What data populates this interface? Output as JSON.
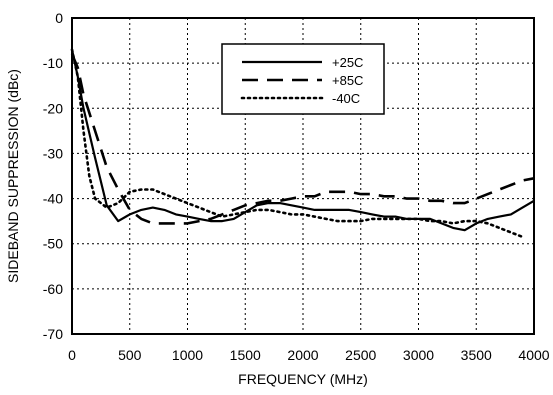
{
  "chart_data": {
    "type": "line",
    "title": "",
    "xlabel": "FREQUENCY (MHz)",
    "ylabel": "SIDEBAND SUPPRESSION (dBc)",
    "xlim": [
      0,
      4000
    ],
    "ylim": [
      -70,
      0
    ],
    "x_ticks": [
      0,
      500,
      1000,
      1500,
      2000,
      2500,
      3000,
      3500,
      4000
    ],
    "y_ticks": [
      0,
      -10,
      -20,
      -30,
      -40,
      -50,
      -60,
      -70
    ],
    "grid": true,
    "grid_style": "dotted",
    "legend_position": "top-center",
    "series": [
      {
        "name": "+25C",
        "line_style": "solid",
        "color": "#000000",
        "points": [
          [
            0,
            -7
          ],
          [
            50,
            -13
          ],
          [
            100,
            -20
          ],
          [
            200,
            -31
          ],
          [
            300,
            -41.5
          ],
          [
            400,
            -45
          ],
          [
            500,
            -43.5
          ],
          [
            600,
            -42.5
          ],
          [
            700,
            -42
          ],
          [
            800,
            -42.5
          ],
          [
            900,
            -43.5
          ],
          [
            1000,
            -44
          ],
          [
            1100,
            -44.5
          ],
          [
            1200,
            -45
          ],
          [
            1300,
            -45
          ],
          [
            1400,
            -44.5
          ],
          [
            1500,
            -43
          ],
          [
            1600,
            -41.5
          ],
          [
            1700,
            -41
          ],
          [
            1800,
            -41
          ],
          [
            1900,
            -41.5
          ],
          [
            2000,
            -42
          ],
          [
            2100,
            -42.5
          ],
          [
            2200,
            -42.5
          ],
          [
            2300,
            -42.5
          ],
          [
            2400,
            -42.5
          ],
          [
            2500,
            -43
          ],
          [
            2600,
            -43.5
          ],
          [
            2700,
            -44
          ],
          [
            2800,
            -44
          ],
          [
            2900,
            -44.5
          ],
          [
            3000,
            -44.5
          ],
          [
            3100,
            -44.5
          ],
          [
            3200,
            -45.5
          ],
          [
            3300,
            -46.5
          ],
          [
            3400,
            -47
          ],
          [
            3500,
            -45.5
          ],
          [
            3600,
            -44.5
          ],
          [
            3700,
            -44
          ],
          [
            3800,
            -43.5
          ],
          [
            3900,
            -42
          ],
          [
            4000,
            -40.5
          ]
        ]
      },
      {
        "name": "+85C",
        "line_style": "dashed",
        "color": "#000000",
        "points": [
          [
            0,
            -8
          ],
          [
            50,
            -11
          ],
          [
            100,
            -17
          ],
          [
            200,
            -25
          ],
          [
            300,
            -33
          ],
          [
            400,
            -38
          ],
          [
            500,
            -42.5
          ],
          [
            600,
            -44.5
          ],
          [
            700,
            -45.5
          ],
          [
            800,
            -45.5
          ],
          [
            900,
            -45.5
          ],
          [
            1000,
            -45.5
          ],
          [
            1100,
            -45
          ],
          [
            1200,
            -44.5
          ],
          [
            1300,
            -43.5
          ],
          [
            1400,
            -42.5
          ],
          [
            1500,
            -41.5
          ],
          [
            1600,
            -41
          ],
          [
            1700,
            -40.5
          ],
          [
            1800,
            -40.5
          ],
          [
            1900,
            -40
          ],
          [
            2000,
            -39.5
          ],
          [
            2100,
            -39.5
          ],
          [
            2200,
            -38.5
          ],
          [
            2300,
            -38.5
          ],
          [
            2400,
            -38.5
          ],
          [
            2500,
            -39
          ],
          [
            2600,
            -39
          ],
          [
            2700,
            -39.5
          ],
          [
            2800,
            -39.5
          ],
          [
            2900,
            -40
          ],
          [
            3000,
            -40
          ],
          [
            3100,
            -40.5
          ],
          [
            3200,
            -40.5
          ],
          [
            3300,
            -41
          ],
          [
            3400,
            -41
          ],
          [
            3500,
            -40
          ],
          [
            3600,
            -39
          ],
          [
            3700,
            -38
          ],
          [
            3800,
            -37
          ],
          [
            3900,
            -36
          ],
          [
            4000,
            -35.5
          ]
        ]
      },
      {
        "name": "-40C",
        "line_style": "dotted",
        "color": "#000000",
        "points": [
          [
            0,
            -7
          ],
          [
            50,
            -13
          ],
          [
            100,
            -25
          ],
          [
            150,
            -35
          ],
          [
            200,
            -40
          ],
          [
            300,
            -42
          ],
          [
            400,
            -41
          ],
          [
            500,
            -38.5
          ],
          [
            600,
            -38
          ],
          [
            700,
            -38
          ],
          [
            800,
            -39
          ],
          [
            900,
            -40
          ],
          [
            1000,
            -41
          ],
          [
            1100,
            -42
          ],
          [
            1200,
            -43
          ],
          [
            1300,
            -44
          ],
          [
            1400,
            -43.5
          ],
          [
            1500,
            -43
          ],
          [
            1600,
            -42.5
          ],
          [
            1700,
            -42.5
          ],
          [
            1800,
            -43
          ],
          [
            1900,
            -43.5
          ],
          [
            2000,
            -43.5
          ],
          [
            2100,
            -44
          ],
          [
            2200,
            -44.5
          ],
          [
            2300,
            -45
          ],
          [
            2400,
            -45
          ],
          [
            2500,
            -45
          ],
          [
            2600,
            -44.5
          ],
          [
            2700,
            -44.5
          ],
          [
            2800,
            -44.5
          ],
          [
            2900,
            -44.5
          ],
          [
            3000,
            -44.5
          ],
          [
            3100,
            -45
          ],
          [
            3200,
            -45
          ],
          [
            3300,
            -45.5
          ],
          [
            3400,
            -45
          ],
          [
            3500,
            -45
          ],
          [
            3600,
            -45.5
          ],
          [
            3700,
            -46.5
          ],
          [
            3800,
            -47.5
          ],
          [
            3900,
            -48.5
          ]
        ]
      }
    ]
  }
}
